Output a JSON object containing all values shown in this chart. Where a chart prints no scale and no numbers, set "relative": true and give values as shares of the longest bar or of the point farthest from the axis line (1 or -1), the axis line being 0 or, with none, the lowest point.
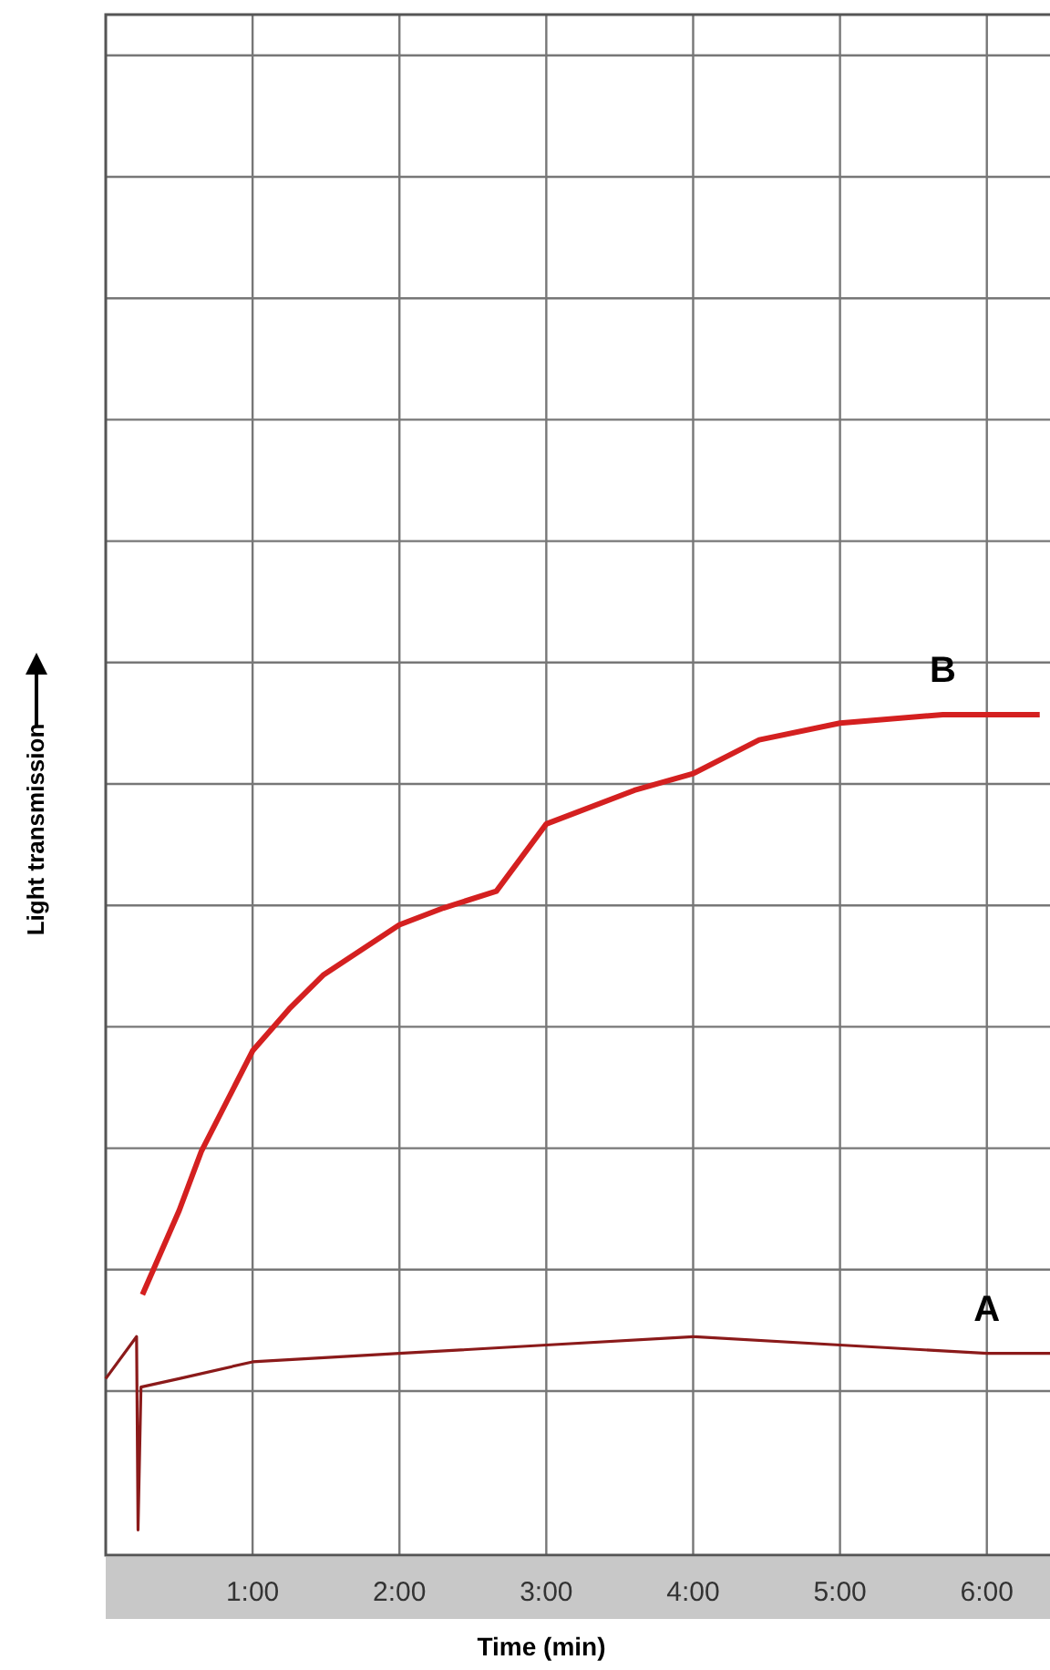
{
  "chart_data": {
    "type": "line",
    "relative": true,
    "xlabel": "Time (min)",
    "ylabel": "Light transmission",
    "xlim": [
      0,
      6.43
    ],
    "xticks": [
      {
        "value": 1,
        "label": "1:00"
      },
      {
        "value": 2,
        "label": "2:00"
      },
      {
        "value": 3,
        "label": "3:00"
      },
      {
        "value": 4,
        "label": "4:00"
      },
      {
        "value": 5,
        "label": "5:00"
      },
      {
        "value": 6,
        "label": "6:00"
      }
    ],
    "grid": true,
    "marker": "none",
    "line_style": "solid",
    "series": [
      {
        "name": "B",
        "color": "#d42020",
        "x": [
          0.25,
          0.5,
          0.65,
          1.0,
          1.25,
          1.48,
          2.0,
          2.3,
          2.66,
          3.0,
          3.6,
          4.0,
          4.45,
          5.0,
          5.7,
          6.36
        ],
        "values": [
          0.31,
          0.41,
          0.48,
          0.6,
          0.65,
          0.69,
          0.75,
          0.77,
          0.79,
          0.87,
          0.91,
          0.93,
          0.97,
          0.99,
          1.0,
          1.0
        ]
      },
      {
        "name": "A",
        "color": "#8b1a1a",
        "x": [
          0,
          0.21,
          0.22,
          0.24,
          0.5,
          1.0,
          2.0,
          3.0,
          4.0,
          5.0,
          6.0,
          6.43
        ],
        "values": [
          0.21,
          0.26,
          0.03,
          0.2,
          0.21,
          0.23,
          0.24,
          0.25,
          0.26,
          0.25,
          0.24,
          0.24
        ]
      }
    ]
  }
}
